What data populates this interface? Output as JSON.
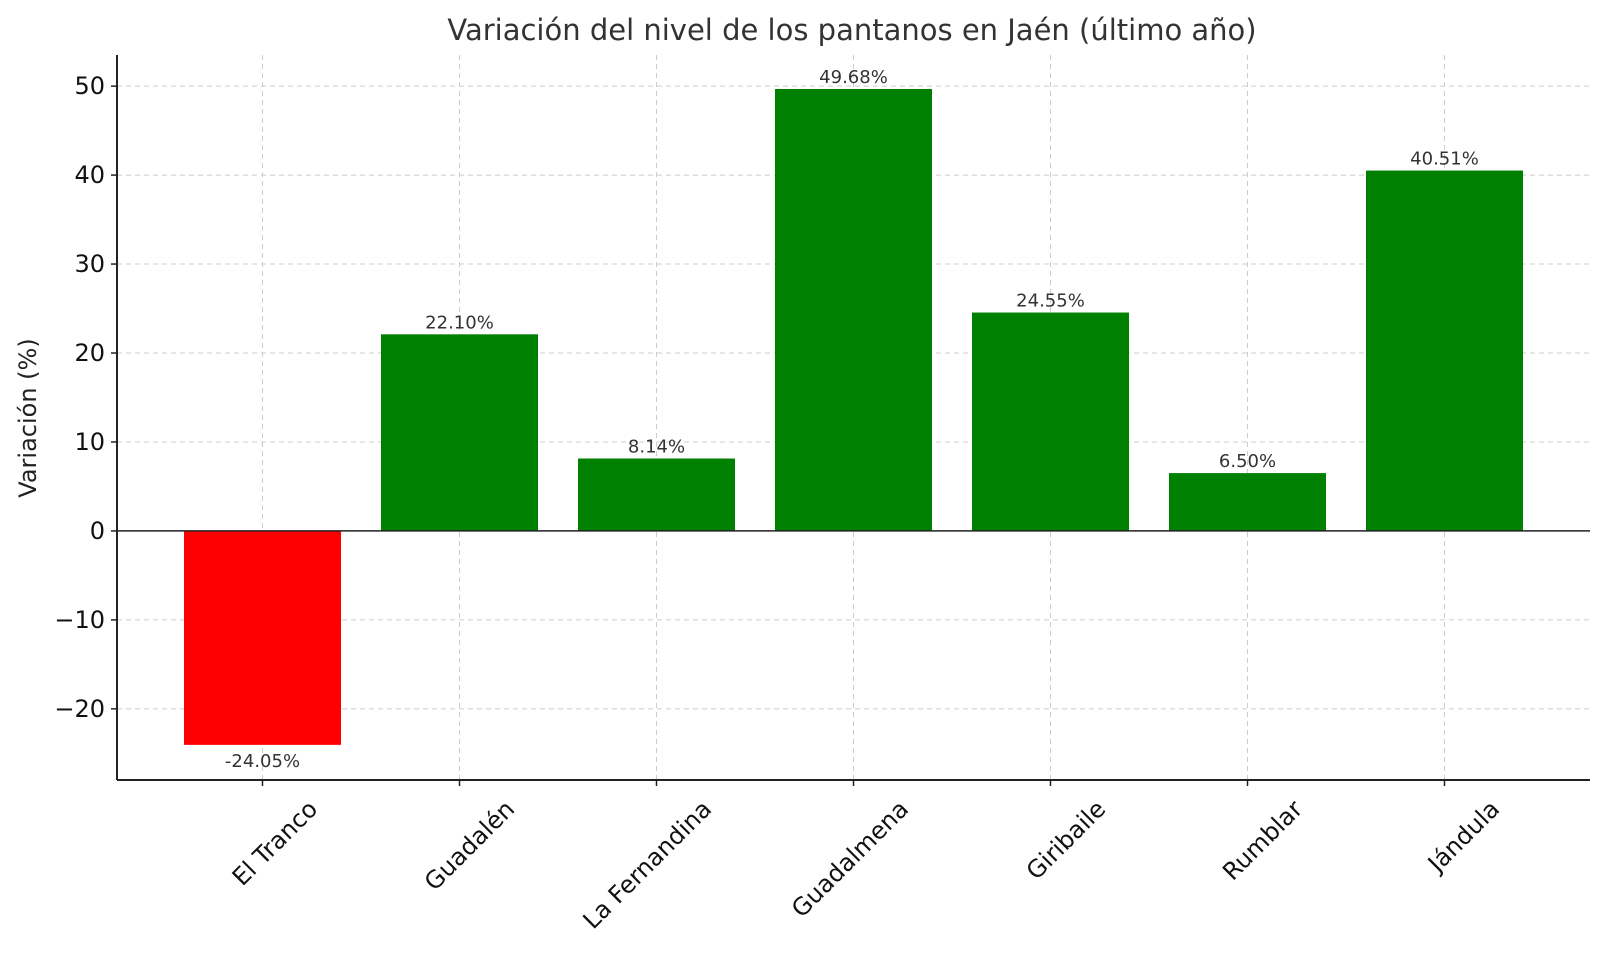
{
  "chart_data": {
    "type": "bar",
    "title": "Variación del nivel de los pantanos en Jaén (último año)",
    "xlabel": "",
    "ylabel": "Variación (%)",
    "categories": [
      "El Tranco",
      "Guadalén",
      "La Fernandina",
      "Guadalmena",
      "Giribaile",
      "Rumblar",
      "Jándula"
    ],
    "values": [
      -24.05,
      22.1,
      8.14,
      49.68,
      24.55,
      6.5,
      40.51
    ],
    "data_labels": [
      "-24.05%",
      "22.10%",
      "8.14%",
      "49.68%",
      "24.55%",
      "6.50%",
      "40.51%"
    ],
    "ylim": [
      -28,
      53.5
    ],
    "yticks": [
      -20,
      -10,
      0,
      10,
      20,
      30,
      40,
      50
    ],
    "ytick_labels": [
      "−20",
      "−10",
      "0",
      "10",
      "20",
      "30",
      "40",
      "50"
    ],
    "grid": true,
    "colors": {
      "positive": "#008000",
      "negative": "#ff0000"
    }
  }
}
